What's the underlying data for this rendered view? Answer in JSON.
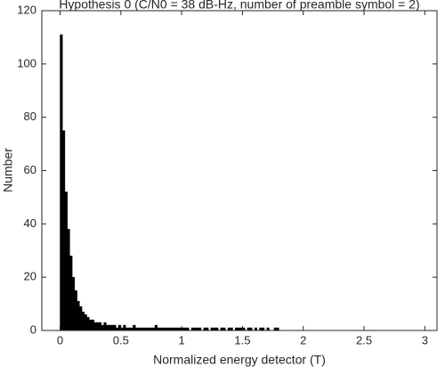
{
  "chart_data": {
    "type": "histogram",
    "title": "Hypothesis 0 (C/N0 = 38 dB-Hz, number of preamble symbol = 2)",
    "xlabel": "Normalized energy detector (T)",
    "ylabel": "Number",
    "color": "#000000",
    "bins": [
      0,
      0.02,
      0.04,
      0.06,
      0.08,
      0.1,
      0.12,
      0.14,
      0.16,
      0.18,
      0.2,
      0.22,
      0.24,
      0.26,
      0.28,
      0.3,
      0.32,
      0.34,
      0.36,
      0.38,
      0.4,
      0.42,
      0.44,
      0.46,
      0.48,
      0.5,
      0.52,
      0.54,
      0.56,
      0.58,
      0.6,
      0.62,
      0.64,
      0.66,
      0.68,
      0.7,
      0.72,
      0.74,
      0.76,
      0.78,
      0.8,
      0.82,
      0.84,
      0.86,
      0.88,
      0.9,
      0.92,
      0.94,
      0.96,
      0.98,
      1,
      1.02,
      1.04,
      1.06,
      1.08,
      1.1,
      1.12,
      1.14,
      1.16,
      1.18,
      1.2,
      1.22,
      1.24,
      1.26,
      1.28,
      1.3,
      1.32,
      1.34,
      1.36,
      1.38,
      1.4,
      1.42,
      1.44,
      1.46,
      1.48,
      1.5,
      1.52,
      1.54,
      1.56,
      1.58,
      1.6,
      1.62,
      1.64,
      1.66,
      1.68,
      1.7,
      1.72,
      1.74,
      1.76,
      1.78,
      1.8
    ],
    "counts": [
      111,
      75,
      52,
      38,
      28,
      20,
      15,
      11,
      9,
      7,
      6,
      5,
      4,
      4,
      3,
      3,
      3,
      2,
      3,
      2,
      2,
      2,
      2,
      1,
      2,
      1,
      2,
      1,
      1,
      1,
      2,
      1,
      1,
      1,
      1,
      1,
      1,
      1,
      1,
      2,
      1,
      1,
      1,
      1,
      1,
      1,
      1,
      1,
      1,
      1,
      1,
      1,
      1,
      0,
      1,
      1,
      1,
      1,
      0,
      1,
      1,
      0,
      1,
      1,
      1,
      0,
      1,
      1,
      0,
      1,
      1,
      0,
      1,
      1,
      1,
      1,
      0,
      1,
      1,
      0,
      1,
      0,
      1,
      1,
      0,
      1,
      0,
      0,
      1,
      1
    ],
    "xlim": [
      -0.15,
      3.1
    ],
    "xticks": [
      0,
      0.5,
      1,
      1.5,
      2,
      2.5,
      3
    ],
    "ylim": [
      0,
      120
    ],
    "yticks": [
      0,
      20,
      40,
      60,
      80,
      100,
      120
    ]
  }
}
